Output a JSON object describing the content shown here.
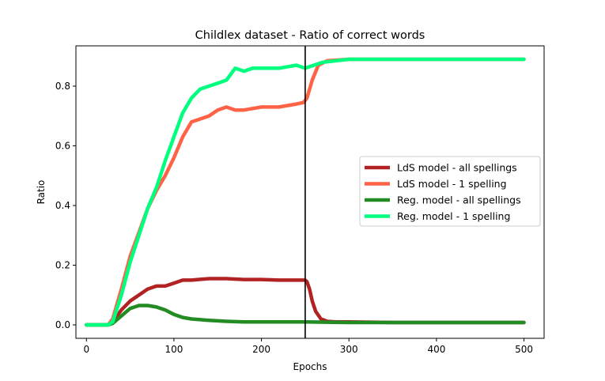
{
  "chart_data": {
    "type": "line",
    "title": "Childlex dataset - Ratio of correct words",
    "xlabel": "Epochs",
    "ylabel": "Ratio",
    "xlim": [
      -12,
      523
    ],
    "ylim": [
      -0.045,
      0.935
    ],
    "xticks": [
      0,
      100,
      200,
      300,
      400,
      500
    ],
    "yticks": [
      0.0,
      0.2,
      0.4,
      0.6,
      0.8
    ],
    "vline_x": 250,
    "vline_color": "#000000",
    "grid": false,
    "legend_position": "center-right",
    "series": [
      {
        "name": "LdS model - all spellings",
        "color": "#b22222",
        "x": [
          0,
          25,
          30,
          40,
          50,
          60,
          70,
          80,
          90,
          100,
          110,
          120,
          140,
          160,
          180,
          200,
          220,
          240,
          250,
          252,
          255,
          258,
          262,
          268,
          275,
          285,
          300,
          350,
          400,
          450,
          500
        ],
        "y": [
          0.0,
          0.0,
          0.01,
          0.05,
          0.08,
          0.1,
          0.12,
          0.13,
          0.13,
          0.14,
          0.15,
          0.15,
          0.155,
          0.155,
          0.152,
          0.152,
          0.15,
          0.15,
          0.15,
          0.145,
          0.12,
          0.08,
          0.045,
          0.02,
          0.012,
          0.01,
          0.01,
          0.008,
          0.008,
          0.008,
          0.008
        ]
      },
      {
        "name": "LdS model - 1 spelling",
        "color": "#ff6347",
        "x": [
          0,
          25,
          30,
          40,
          50,
          60,
          70,
          80,
          90,
          95,
          100,
          110,
          120,
          130,
          140,
          150,
          160,
          170,
          180,
          200,
          220,
          240,
          248,
          252,
          258,
          265,
          275,
          300,
          350,
          400,
          450,
          500
        ],
        "y": [
          0.0,
          0.0,
          0.02,
          0.12,
          0.23,
          0.31,
          0.39,
          0.45,
          0.5,
          0.53,
          0.56,
          0.63,
          0.68,
          0.69,
          0.7,
          0.72,
          0.73,
          0.72,
          0.72,
          0.73,
          0.73,
          0.74,
          0.745,
          0.76,
          0.82,
          0.87,
          0.885,
          0.89,
          0.89,
          0.89,
          0.89,
          0.89
        ]
      },
      {
        "name": "Reg. model - all spellings",
        "color": "#228b22",
        "x": [
          0,
          25,
          30,
          40,
          50,
          60,
          70,
          80,
          90,
          100,
          110,
          120,
          140,
          160,
          180,
          200,
          220,
          250,
          300,
          350,
          400,
          450,
          500
        ],
        "y": [
          0.0,
          0.0,
          0.005,
          0.03,
          0.055,
          0.065,
          0.065,
          0.06,
          0.05,
          0.035,
          0.025,
          0.02,
          0.015,
          0.012,
          0.01,
          0.01,
          0.01,
          0.01,
          0.008,
          0.008,
          0.008,
          0.008,
          0.008
        ]
      },
      {
        "name": "Reg. model - 1 spelling",
        "color": "#00ff7f",
        "x": [
          0,
          25,
          30,
          40,
          50,
          60,
          70,
          80,
          90,
          100,
          110,
          120,
          130,
          140,
          150,
          160,
          170,
          180,
          190,
          200,
          220,
          240,
          250,
          260,
          270,
          300,
          350,
          400,
          450,
          500
        ],
        "y": [
          0.0,
          0.0,
          0.01,
          0.1,
          0.21,
          0.3,
          0.39,
          0.46,
          0.55,
          0.63,
          0.71,
          0.76,
          0.79,
          0.8,
          0.81,
          0.82,
          0.86,
          0.85,
          0.86,
          0.86,
          0.86,
          0.87,
          0.86,
          0.87,
          0.88,
          0.89,
          0.89,
          0.89,
          0.89,
          0.89
        ]
      }
    ]
  }
}
